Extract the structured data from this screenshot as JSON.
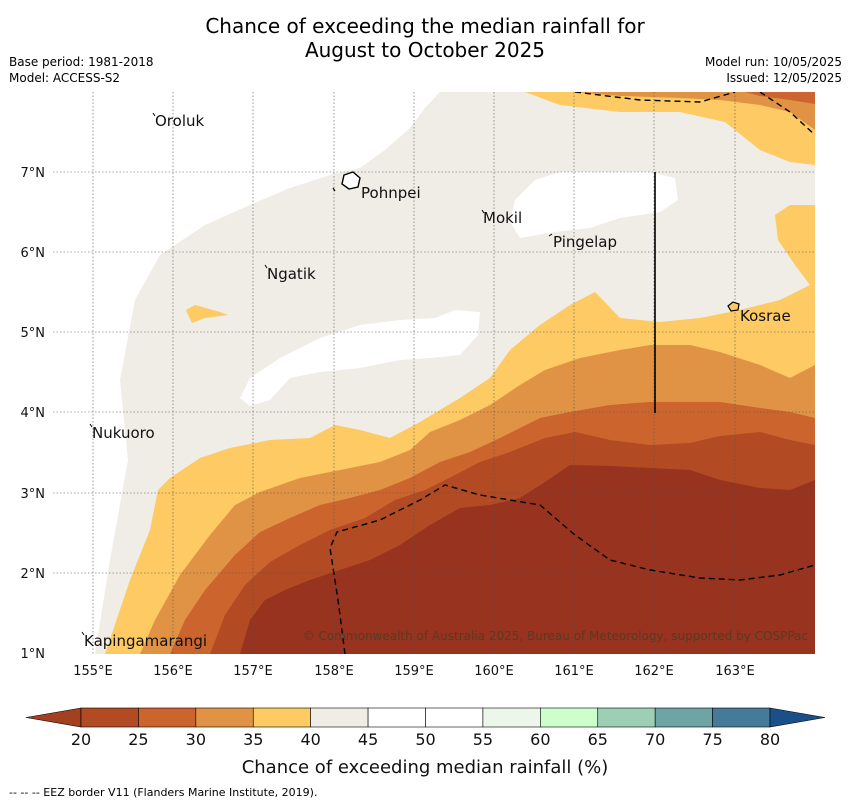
{
  "title_line1": "Chance of exceeding the median rainfall for",
  "title_line2": "August to October 2025",
  "meta_left": {
    "base_period": "Base period: 1981-2018",
    "model": "Model: ACCESS-S2"
  },
  "meta_right": {
    "model_run": "Model run: 10/05/2025",
    "issued": "Issued: 12/05/2025"
  },
  "map": {
    "lon_ticks": [
      "155°E",
      "156°E",
      "157°E",
      "158°E",
      "159°E",
      "160°E",
      "161°E",
      "162°E",
      "163°E"
    ],
    "lat_ticks": [
      "7°N",
      "6°N",
      "5°N",
      "4°N",
      "3°N",
      "2°N",
      "1°N"
    ],
    "places": {
      "oroluk": "Oroluk",
      "pohnpei": "Pohnpei",
      "mokil": "Mokil",
      "pingelap": "Pingelap",
      "ngatik": "Ngatik",
      "kosrae": "Kosrae",
      "nukuoro": "Nukuoro",
      "kapingamarangi": "Kapingamarangi"
    },
    "credit": "© Commonwealth of Australia 2025, Bureau of Meteorology, supported by COSPPac"
  },
  "colorbar": {
    "ticks": [
      "20",
      "25",
      "30",
      "35",
      "40",
      "45",
      "50",
      "55",
      "60",
      "65",
      "70",
      "75",
      "80"
    ],
    "colors": [
      "#a2401f",
      "#b24a24",
      "#cc642e",
      "#e09345",
      "#fdca63",
      "#f0ece6",
      "#ffffff",
      "#ffffff",
      "#ecf6ea",
      "#ccffcc",
      "#9dcfb6",
      "#6fa4a6",
      "#457a98",
      "#1a4f8a"
    ],
    "label": "Chance of exceeding median rainfall (%)"
  },
  "footnote": "--  --  -- EEZ border V11 (Flanders Marine Institute, 2019)."
}
